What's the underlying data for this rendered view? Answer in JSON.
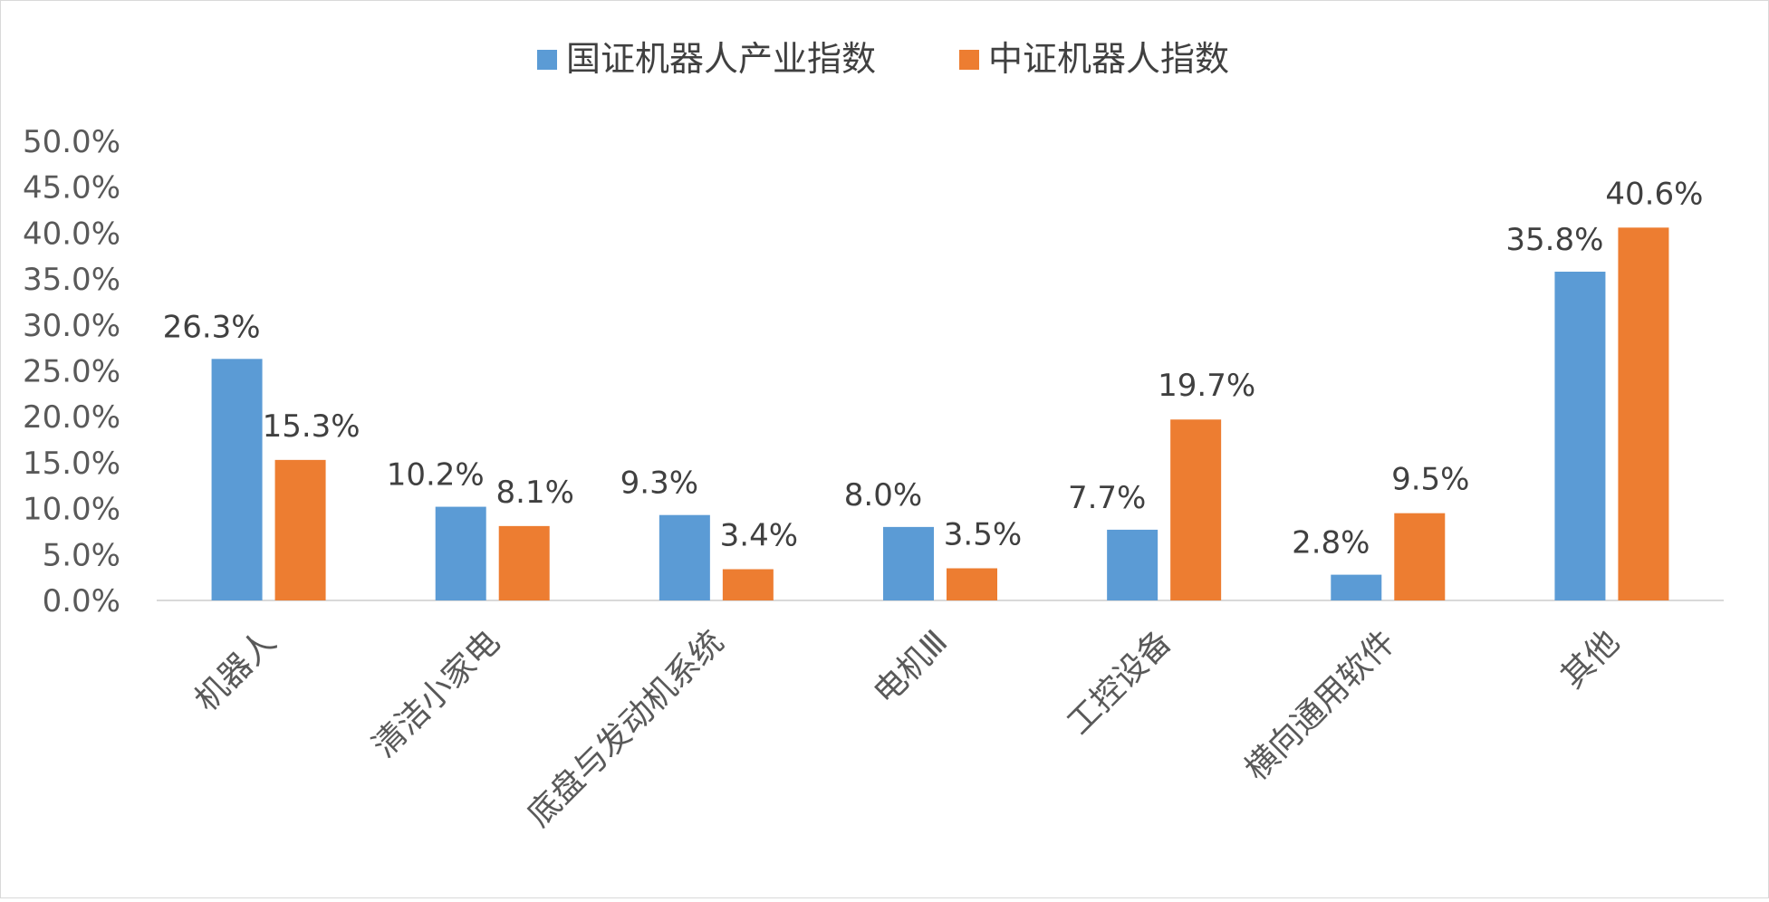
{
  "chart_data": {
    "type": "bar",
    "categories": [
      "机器人",
      "清洁小家电",
      "底盘与发动机系统",
      "电机Ⅲ",
      "工控设备",
      "横向通用软件",
      "其他"
    ],
    "series": [
      {
        "name": "国证机器人产业指数",
        "values": [
          26.3,
          10.2,
          9.3,
          8.0,
          7.7,
          2.8,
          35.8
        ],
        "labels": [
          "26.3%",
          "10.2%",
          "9.3%",
          "8.0%",
          "7.7%",
          "2.8%",
          "35.8%"
        ],
        "color": "#5b9bd5"
      },
      {
        "name": "中证机器人指数",
        "values": [
          15.3,
          8.1,
          3.4,
          3.5,
          19.7,
          9.5,
          40.6
        ],
        "labels": [
          "15.3%",
          "8.1%",
          "3.4%",
          "3.5%",
          "19.7%",
          "9.5%",
          "40.6%"
        ],
        "color": "#ed7d31"
      }
    ],
    "ylim": [
      0,
      50
    ],
    "yticks": [
      "0.0%",
      "5.0%",
      "10.0%",
      "15.0%",
      "20.0%",
      "25.0%",
      "30.0%",
      "35.0%",
      "40.0%",
      "45.0%",
      "50.0%"
    ],
    "legend_position": "top",
    "grid": false,
    "title": "",
    "xlabel": "",
    "ylabel": ""
  }
}
